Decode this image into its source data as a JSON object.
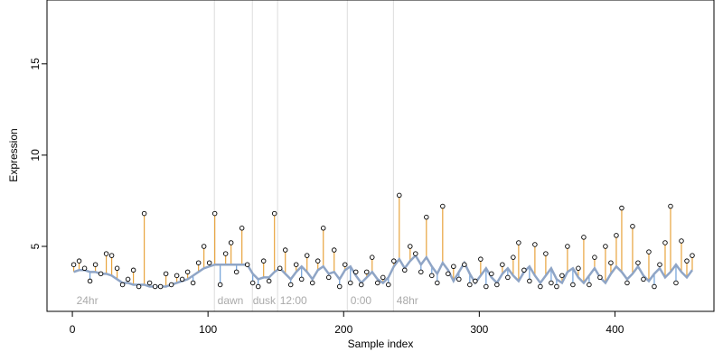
{
  "chart_data": {
    "type": "scatter",
    "x_label": "Sample index",
    "y_label": "Expression",
    "xlim": [
      -18.7,
      473
    ],
    "ylim": [
      1.44,
      18.5
    ],
    "xticks": [
      0,
      100,
      200,
      300,
      400
    ],
    "yticks": [
      5,
      10,
      15
    ],
    "point_color": "#000000",
    "fit_color": "#8fa5c6",
    "above_color": "#e8a33c",
    "below_color": "#6f9fd8",
    "vline_color": "#dddddd",
    "vlines": [
      104.7,
      132.7,
      151.3,
      202.7,
      236.7
    ],
    "annotations": [
      {
        "x": 3,
        "label": "24hr"
      },
      {
        "x": 107,
        "label": "dawn"
      },
      {
        "x": 133,
        "label": "dusk"
      },
      {
        "x": 153,
        "label": "12:00"
      },
      {
        "x": 205,
        "label": "0:00"
      },
      {
        "x": 239,
        "label": "48hr"
      }
    ],
    "x": [
      1,
      5,
      9,
      13,
      17,
      21,
      25,
      29,
      33,
      37,
      41,
      45,
      49,
      53,
      57,
      61,
      65,
      69,
      73,
      77,
      81,
      85,
      89,
      93,
      97,
      101,
      105,
      109,
      113,
      117,
      121,
      125,
      129,
      133,
      137,
      141,
      145,
      149,
      153,
      157,
      161,
      165,
      169,
      173,
      177,
      181,
      185,
      189,
      193,
      197,
      201,
      205,
      209,
      213,
      217,
      221,
      225,
      229,
      233,
      237,
      241,
      245,
      249,
      253,
      257,
      261,
      265,
      269,
      273,
      277,
      281,
      285,
      289,
      293,
      297,
      301,
      305,
      309,
      313,
      317,
      321,
      325,
      329,
      333,
      337,
      341,
      345,
      349,
      353,
      357,
      361,
      365,
      369,
      373,
      377,
      381,
      385,
      389,
      393,
      397,
      401,
      405,
      409,
      413,
      417,
      421,
      425,
      429,
      433,
      437,
      441,
      445,
      449,
      453,
      457
    ],
    "values": [
      4.0,
      4.2,
      3.8,
      3.1,
      4.0,
      3.5,
      4.6,
      4.5,
      3.8,
      2.9,
      3.2,
      3.7,
      2.8,
      6.8,
      3.0,
      2.8,
      2.8,
      3.5,
      2.9,
      3.4,
      3.2,
      3.6,
      3.0,
      4.1,
      5.0,
      4.1,
      6.8,
      2.9,
      4.6,
      5.2,
      3.6,
      6.0,
      4.0,
      3.0,
      2.8,
      4.2,
      3.1,
      6.8,
      3.8,
      4.8,
      2.9,
      4.0,
      3.2,
      4.5,
      3.0,
      4.2,
      6.0,
      3.3,
      4.8,
      2.8,
      4.0,
      3.0,
      3.6,
      2.9,
      3.6,
      4.4,
      3.0,
      3.3,
      2.9,
      4.2,
      7.8,
      3.7,
      5.0,
      4.6,
      3.6,
      6.6,
      3.4,
      3.0,
      7.2,
      3.5,
      3.9,
      3.2,
      4.0,
      2.9,
      3.1,
      4.3,
      2.8,
      3.5,
      2.9,
      4.0,
      3.3,
      4.4,
      5.2,
      3.7,
      3.1,
      5.1,
      2.8,
      4.6,
      3.0,
      2.8,
      3.4,
      5.0,
      2.9,
      3.8,
      5.5,
      2.9,
      4.4,
      3.3,
      5.0,
      4.1,
      5.6,
      7.1,
      3.0,
      6.1,
      4.1,
      3.2,
      4.7,
      2.8,
      4.0,
      5.2,
      7.2,
      3.0,
      5.3,
      4.2,
      4.5
    ],
    "fit_values": [
      3.6,
      3.7,
      3.7,
      3.6,
      3.6,
      3.5,
      3.5,
      3.4,
      3.2,
      3.0,
      3.0,
      2.9,
      2.9,
      2.9,
      2.8,
      2.8,
      2.8,
      2.8,
      2.9,
      3.0,
      3.1,
      3.2,
      3.4,
      3.6,
      3.8,
      3.9,
      4.0,
      4.0,
      4.0,
      4.0,
      4.0,
      4.0,
      4.0,
      3.5,
      3.2,
      3.3,
      3.3,
      3.6,
      3.8,
      3.5,
      3.2,
      3.6,
      3.9,
      3.6,
      3.2,
      3.7,
      3.9,
      3.5,
      3.6,
      3.2,
      3.7,
      3.9,
      3.4,
      3.0,
      3.3,
      3.6,
      3.2,
      3.0,
      3.3,
      3.9,
      4.3,
      3.8,
      4.2,
      4.5,
      4.0,
      4.4,
      3.9,
      3.5,
      4.1,
      3.7,
      3.1,
      3.6,
      4.1,
      3.5,
      3.0,
      3.4,
      3.8,
      3.3,
      3.0,
      3.5,
      3.8,
      3.4,
      3.1,
      3.6,
      3.9,
      3.4,
      3.0,
      3.4,
      3.8,
      3.2,
      3.0,
      3.6,
      3.8,
      3.3,
      3.0,
      3.4,
      3.8,
      3.3,
      3.0,
      3.5,
      3.9,
      3.6,
      3.2,
      3.5,
      3.9,
      3.4,
      3.1,
      3.5,
      3.8,
      3.3,
      3.6,
      4.0,
      3.6,
      3.3,
      3.7
    ]
  }
}
